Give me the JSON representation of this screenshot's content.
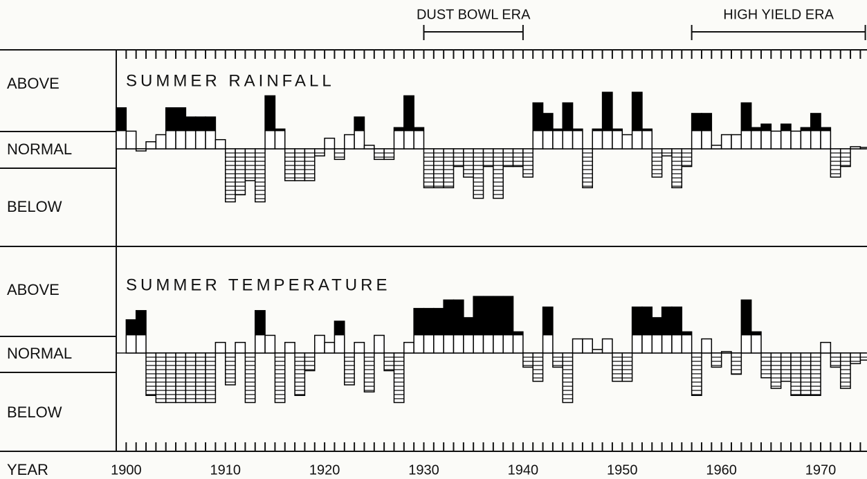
{
  "chart_data": {
    "type": "bar",
    "x_label": "YEAR",
    "x": [
      1899,
      1900,
      1901,
      1902,
      1903,
      1904,
      1905,
      1906,
      1907,
      1908,
      1909,
      1910,
      1911,
      1912,
      1913,
      1914,
      1915,
      1916,
      1917,
      1918,
      1919,
      1920,
      1921,
      1922,
      1923,
      1924,
      1925,
      1926,
      1927,
      1928,
      1929,
      1930,
      1931,
      1932,
      1933,
      1934,
      1935,
      1936,
      1937,
      1938,
      1939,
      1940,
      1941,
      1942,
      1943,
      1944,
      1945,
      1946,
      1947,
      1948,
      1949,
      1950,
      1951,
      1952,
      1953,
      1954,
      1955,
      1956,
      1957,
      1958,
      1959,
      1960,
      1961,
      1962,
      1963,
      1964,
      1965,
      1966,
      1967,
      1968,
      1969,
      1970,
      1971,
      1972,
      1973,
      1974
    ],
    "xlim": [
      1899,
      1974.6
    ],
    "xticks": [
      1900,
      1910,
      1920,
      1930,
      1940,
      1950,
      1960,
      1970
    ],
    "ylim": [
      -14,
      14
    ],
    "normal_band": [
      -2.5,
      2.5
    ],
    "level_labels": [
      "ABOVE",
      "NORMAL",
      "BELOW"
    ],
    "annotations": [
      {
        "text": "DUST BOWL ERA",
        "span": [
          1930,
          1940
        ]
      },
      {
        "text": "HIGH YIELD ERA",
        "span": [
          1957,
          1974.5
        ]
      }
    ],
    "series": [
      {
        "name": "SUMMER RAINFALL",
        "color": "#000000",
        "values": [
          5.8,
          2.5,
          -0.3,
          1.0,
          2.0,
          5.8,
          5.8,
          4.5,
          4.5,
          4.5,
          1.3,
          -7.5,
          -6.5,
          -4.5,
          -7.5,
          7.5,
          2.8,
          -4.5,
          -4.5,
          -4.5,
          -1.0,
          1.5,
          -1.5,
          2.0,
          4.5,
          0.5,
          -1.5,
          -1.5,
          3.0,
          7.5,
          3.0,
          -5.5,
          -5.5,
          -5.5,
          -2.5,
          -4.0,
          -7.0,
          -2.5,
          -7.0,
          -2.5,
          -2.5,
          -4.0,
          6.5,
          5.0,
          2.8,
          6.5,
          2.8,
          -5.5,
          2.8,
          8.0,
          2.8,
          2.0,
          8.0,
          2.8,
          -4.0,
          -1.0,
          -5.5,
          -2.5,
          5.0,
          5.0,
          0.5,
          2.0,
          2.0,
          6.5,
          3.0,
          3.5,
          2.5,
          3.5,
          2.5,
          3.0,
          5.0,
          3.0,
          -4.0,
          -2.5,
          0.3,
          0.2
        ]
      },
      {
        "name": "SUMMER TEMPERATURE",
        "color": "#000000",
        "values": [
          null,
          4.7,
          6.0,
          -6.0,
          -7.0,
          -7.0,
          -7.0,
          -7.0,
          -7.0,
          -7.0,
          1.5,
          -4.5,
          1.5,
          -7.0,
          6.0,
          2.5,
          -7.0,
          1.5,
          -6.0,
          -2.5,
          2.5,
          1.5,
          4.5,
          -4.5,
          1.5,
          -5.5,
          2.5,
          -2.5,
          -7.0,
          1.5,
          6.3,
          6.3,
          6.3,
          7.5,
          7.5,
          5.0,
          8.0,
          8.0,
          8.0,
          8.0,
          3.0,
          -2.0,
          -4.0,
          6.5,
          -2.0,
          -7.0,
          2.0,
          2.0,
          0.5,
          2.0,
          -4.0,
          -4.0,
          6.5,
          6.5,
          5.0,
          6.5,
          6.5,
          3.0,
          -6.0,
          2.0,
          -2.0,
          0.2,
          -3.0,
          7.5,
          3.0,
          -3.5,
          -5.0,
          -4.0,
          -6.0,
          -6.0,
          -6.0,
          1.5,
          -2.0,
          -5.0,
          -1.5,
          -1.0
        ]
      }
    ]
  }
}
